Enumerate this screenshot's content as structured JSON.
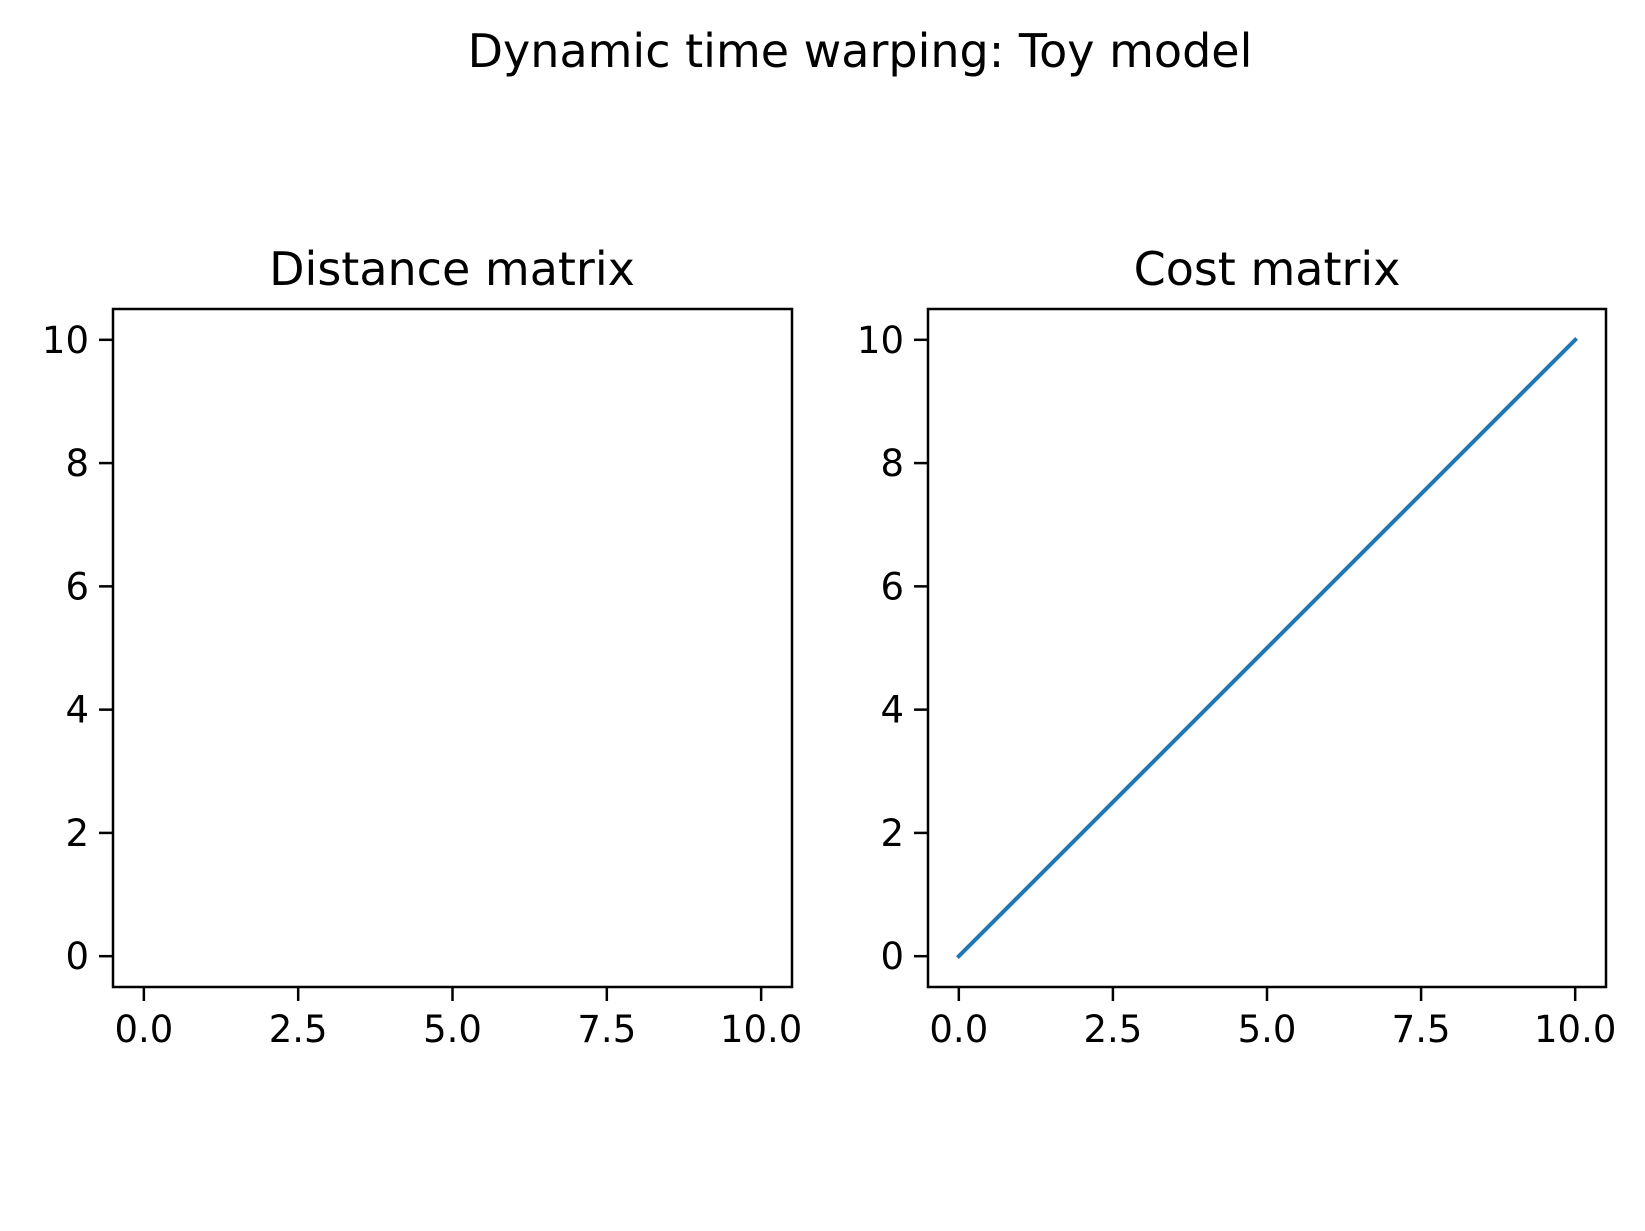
{
  "figure": {
    "suptitle": "Dynamic time warping: Toy model"
  },
  "chart_data": [
    {
      "type": "line",
      "title": "Distance matrix",
      "xlabel": "",
      "ylabel": "",
      "xlim": [
        -0.5,
        10.5
      ],
      "ylim": [
        -0.5,
        10.5
      ],
      "xticks": [
        0,
        2.5,
        5,
        7.5,
        10
      ],
      "xtick_labels": [
        "0.0",
        "2.5",
        "5.0",
        "7.5",
        "10.0"
      ],
      "yticks": [
        0,
        2,
        4,
        6,
        8,
        10
      ],
      "ytick_labels": [
        "0",
        "2",
        "4",
        "6",
        "8",
        "10"
      ],
      "grid": false,
      "series": []
    },
    {
      "type": "line",
      "title": "Cost matrix",
      "xlabel": "",
      "ylabel": "",
      "xlim": [
        -0.5,
        10.5
      ],
      "ylim": [
        -0.5,
        10.5
      ],
      "xticks": [
        0,
        2.5,
        5,
        7.5,
        10
      ],
      "xtick_labels": [
        "0.0",
        "2.5",
        "5.0",
        "7.5",
        "10.0"
      ],
      "yticks": [
        0,
        2,
        4,
        6,
        8,
        10
      ],
      "ytick_labels": [
        "0",
        "2",
        "4",
        "6",
        "8",
        "10"
      ],
      "grid": false,
      "series": [
        {
          "x": [
            0,
            10
          ],
          "y": [
            0,
            10
          ],
          "color": "#1f77b4"
        }
      ]
    }
  ]
}
